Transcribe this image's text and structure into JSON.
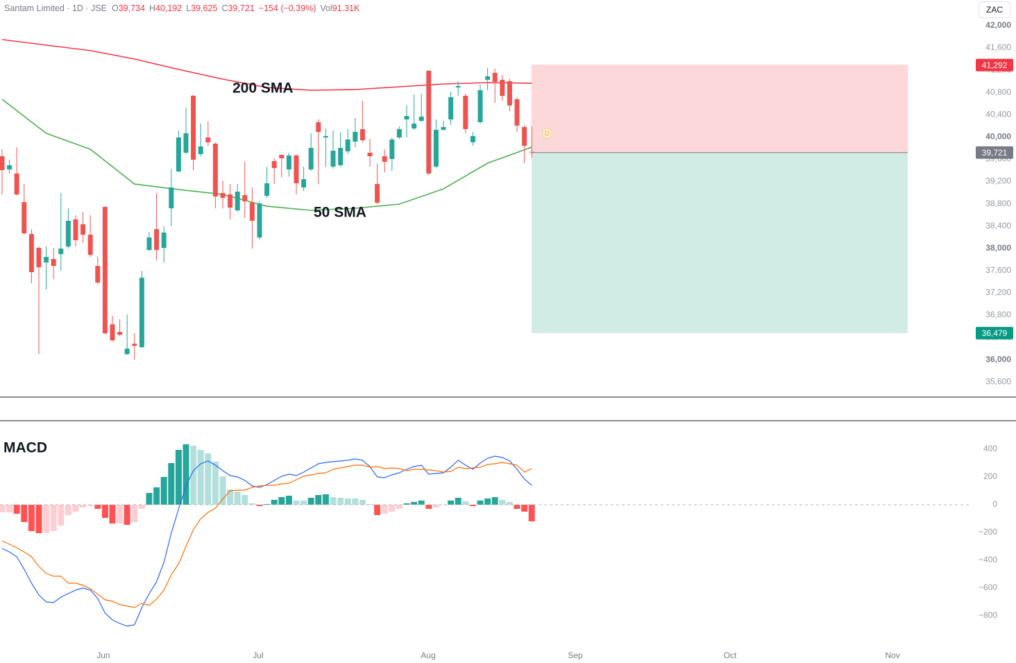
{
  "chart_data": [
    {
      "type": "candlestick",
      "title": "Santam Limited · 1D · JSE",
      "legend": [
        {
          "label": "O",
          "value": "39,734"
        },
        {
          "label": "H",
          "value": "40,192"
        },
        {
          "label": "L",
          "value": "39,625"
        },
        {
          "label": "C",
          "value": "39,721"
        }
      ],
      "change": "−154 (−0.39%)",
      "volume_label": "Vol",
      "volume": "91.31K",
      "currency": "ZAC",
      "marker": "D",
      "up_color": "#26a69a",
      "down_color": "#ef5350",
      "x": [
        0,
        1,
        2,
        3,
        4,
        5,
        6,
        7,
        8,
        9,
        10,
        11,
        12,
        13,
        14,
        15,
        16,
        17,
        18,
        19,
        20,
        21,
        22,
        23,
        24,
        25,
        26,
        27,
        28,
        29,
        30,
        31,
        32,
        33,
        34,
        35,
        36,
        37,
        38,
        39,
        40,
        41,
        42,
        43,
        44,
        45,
        46,
        47,
        48,
        49,
        50,
        51,
        52,
        53,
        54,
        55,
        56,
        57,
        58,
        59,
        60,
        61,
        62,
        63,
        64,
        65,
        66,
        67,
        68,
        69,
        70,
        71,
        72
      ],
      "open": [
        39655,
        39418,
        39344,
        38832,
        38259,
        38009,
        37747,
        37810,
        37897,
        38034,
        38521,
        38433,
        38246,
        37685,
        38745,
        36637,
        36500,
        36101,
        36288,
        36226,
        37972,
        38346,
        38009,
        38720,
        39381,
        39718,
        40740,
        39693,
        39992,
        39880,
        38994,
        38969,
        38683,
        38957,
        38820,
        38196,
        38944,
        39568,
        39680,
        39418,
        39668,
        39094,
        39418,
        40266,
        39992,
        39468,
        39493,
        39743,
        39917,
        40142,
        39718,
        39156,
        39655,
        39605,
        39992,
        40316,
        40154,
        40291,
        41189,
        39468,
        40129,
        40316,
        40890,
        40740,
        39905,
        40266,
        41027,
        41152,
        41027,
        41002,
        40678,
        40179,
        39734
      ],
      "high": [
        39780,
        39593,
        39817,
        39156,
        38346,
        38034,
        38034,
        38009,
        38994,
        38720,
        38595,
        38658,
        38595,
        37847,
        38760,
        36787,
        36725,
        36812,
        36475,
        37598,
        38296,
        38994,
        38396,
        39431,
        40117,
        40528,
        40760,
        40241,
        40279,
        39905,
        39219,
        39156,
        39156,
        39555,
        39094,
        38845,
        39468,
        39618,
        39693,
        39718,
        39693,
        39468,
        40067,
        40316,
        40154,
        40117,
        40092,
        40142,
        40341,
        40653,
        39967,
        39518,
        39780,
        39992,
        40192,
        40566,
        40765,
        40778,
        41200,
        40316,
        40291,
        40815,
        41002,
        40778,
        40092,
        40940,
        41239,
        41226,
        41114,
        41052,
        40715,
        40216,
        40192
      ],
      "low": [
        38969,
        39344,
        38944,
        38246,
        37373,
        36101,
        37261,
        37448,
        37598,
        37997,
        38034,
        38097,
        37847,
        37348,
        36460,
        36326,
        36425,
        36090,
        36002,
        36214,
        37947,
        37785,
        37747,
        38396,
        39368,
        39693,
        39406,
        39655,
        39842,
        38720,
        38720,
        38521,
        38658,
        38545,
        37997,
        38159,
        38907,
        39156,
        39281,
        39294,
        38969,
        39032,
        39393,
        39156,
        39468,
        39431,
        39468,
        39693,
        39817,
        39905,
        39468,
        38795,
        39368,
        39393,
        39967,
        39992,
        40129,
        40266,
        39319,
        39443,
        40117,
        40216,
        40740,
        40067,
        39842,
        40241,
        40840,
        40616,
        40653,
        40466,
        40092,
        39530,
        39625
      ],
      "close": [
        39406,
        39493,
        38969,
        38271,
        37573,
        37660,
        37847,
        37685,
        37997,
        38496,
        38147,
        38246,
        37885,
        37386,
        36475,
        36351,
        36450,
        36201,
        36251,
        37473,
        38196,
        37972,
        38284,
        39094,
        39992,
        40067,
        39593,
        39830,
        39905,
        38932,
        38907,
        38733,
        39019,
        38845,
        38496,
        38807,
        39169,
        39443,
        39618,
        39668,
        39169,
        39244,
        39805,
        40092,
        40017,
        39755,
        39805,
        39955,
        40092,
        39942,
        39655,
        38820,
        39555,
        39955,
        40142,
        40378,
        40241,
        40366,
        39344,
        40129,
        40179,
        40715,
        40915,
        40142,
        40017,
        40840,
        41089,
        40990,
        40740,
        40566,
        40204,
        39842,
        39721
      ],
      "series": [
        {
          "name": "200 SMA",
          "color": "#f23645",
          "x": [
            0,
            6,
            12,
            18,
            24,
            30,
            36,
            42,
            48,
            54,
            60,
            66,
            72
          ],
          "values": [
            41750,
            41650,
            41551,
            41401,
            41214,
            41039,
            40890,
            40840,
            40852,
            40902,
            40952,
            40977,
            40965
          ]
        },
        {
          "name": "50 SMA",
          "color": "#4caf50",
          "x": [
            0,
            6,
            12,
            18,
            24,
            30,
            36,
            42,
            48,
            54,
            60,
            66,
            72
          ],
          "values": [
            40678,
            40067,
            39780,
            39156,
            39057,
            38969,
            38757,
            38683,
            38720,
            38795,
            39069,
            39531,
            39817
          ]
        }
      ],
      "position": {
        "x_range": [
          72,
          123.1
        ],
        "stop": {
          "value": 41292,
          "label": "41,292",
          "color": "#f23645",
          "fill": "#fcd8da"
        },
        "entry": {
          "value": 39721,
          "label": "39,721",
          "color": "#787b86"
        },
        "target": {
          "value": 36479,
          "label": "36,479",
          "color": "#089981",
          "fill": "#d1ebe5"
        }
      },
      "xlim": [
        -0.28,
        131.79
      ],
      "xticks": [
        {
          "value": 13.77,
          "label": "Jun"
        },
        {
          "value": 34.81,
          "label": "Jul"
        },
        {
          "value": 57.92,
          "label": "Aug"
        },
        {
          "value": 77.92,
          "label": "Sep"
        },
        {
          "value": 98.96,
          "label": "Oct"
        },
        {
          "value": 121.04,
          "label": "Nov"
        }
      ],
      "ylim": [
        35330,
        42460
      ],
      "yticks": [
        {
          "value": 42000,
          "label": "42,000"
        },
        {
          "value": 41600,
          "label": "41,600"
        },
        {
          "value": 41200,
          "label": "41,200"
        },
        {
          "value": 40800,
          "label": "40,800"
        },
        {
          "value": 40400,
          "label": "40,400"
        },
        {
          "value": 40000,
          "label": "40,000"
        },
        {
          "value": 39600,
          "label": "39,600"
        },
        {
          "value": 39200,
          "label": "39,200"
        },
        {
          "value": 38800,
          "label": "38,800"
        },
        {
          "value": 38400,
          "label": "38,400"
        },
        {
          "value": 38000,
          "label": "38,000"
        },
        {
          "value": 37600,
          "label": "37,600"
        },
        {
          "value": 37200,
          "label": "37,200"
        },
        {
          "value": 36800,
          "label": "36,800"
        },
        {
          "value": 36400,
          "label": "36,400"
        },
        {
          "value": 36000,
          "label": "36,000"
        },
        {
          "value": 35600,
          "label": "35,600"
        }
      ],
      "grid": false
    },
    {
      "type": "macd",
      "title": "MACD",
      "histogram": [
        -55,
        -55,
        -65,
        -125,
        -190,
        -205,
        -205,
        -190,
        -150,
        -75,
        -50,
        -20,
        -10,
        -30,
        -95,
        -135,
        -135,
        -145,
        -125,
        -30,
        85,
        125,
        200,
        300,
        395,
        435,
        425,
        395,
        370,
        310,
        205,
        110,
        95,
        70,
        10,
        -10,
        5,
        35,
        55,
        65,
        30,
        30,
        50,
        70,
        75,
        55,
        50,
        45,
        45,
        35,
        5,
        -75,
        -65,
        -50,
        -30,
        10,
        20,
        30,
        -30,
        -20,
        -5,
        30,
        50,
        25,
        -10,
        30,
        45,
        55,
        35,
        20,
        -30,
        -50,
        -120
      ],
      "histogram_colors": {
        "up_strong": "#26a69a",
        "up_weak": "#b2dfdb",
        "down_strong": "#ff5252",
        "down_weak": "#ffcdd2"
      },
      "macd": {
        "color": "#2962ff",
        "values": [
          -315,
          -340,
          -375,
          -465,
          -565,
          -650,
          -700,
          -705,
          -665,
          -640,
          -615,
          -600,
          -615,
          -675,
          -780,
          -830,
          -855,
          -875,
          -865,
          -740,
          -640,
          -555,
          -415,
          -205,
          -30,
          135,
          245,
          295,
          315,
          285,
          245,
          210,
          200,
          175,
          135,
          125,
          145,
          175,
          205,
          220,
          210,
          235,
          265,
          295,
          305,
          310,
          315,
          320,
          330,
          320,
          275,
          200,
          195,
          215,
          230,
          255,
          275,
          285,
          220,
          225,
          230,
          270,
          320,
          285,
          255,
          300,
          335,
          350,
          340,
          315,
          255,
          185,
          140
        ]
      },
      "signal": {
        "color": "#ff6d00",
        "values": [
          -260,
          -285,
          -310,
          -340,
          -375,
          -445,
          -495,
          -515,
          -515,
          -565,
          -565,
          -580,
          -605,
          -645,
          -685,
          -695,
          -720,
          -730,
          -740,
          -710,
          -725,
          -680,
          -615,
          -505,
          -425,
          -300,
          -180,
          -100,
          -55,
          -25,
          40,
          100,
          105,
          105,
          125,
          135,
          140,
          140,
          150,
          155,
          180,
          205,
          215,
          225,
          230,
          255,
          265,
          275,
          285,
          285,
          270,
          275,
          260,
          265,
          260,
          245,
          255,
          255,
          250,
          245,
          235,
          240,
          270,
          260,
          265,
          270,
          290,
          295,
          305,
          295,
          285,
          235,
          260
        ]
      },
      "ylim": [
        -1015,
        600
      ],
      "yticks": [
        400,
        200,
        0,
        {
          "value": -200,
          "label": "−200"
        },
        {
          "value": -400,
          "label": "−400"
        },
        {
          "value": -600,
          "label": "−600"
        },
        {
          "value": -800,
          "label": "−800"
        }
      ]
    }
  ]
}
